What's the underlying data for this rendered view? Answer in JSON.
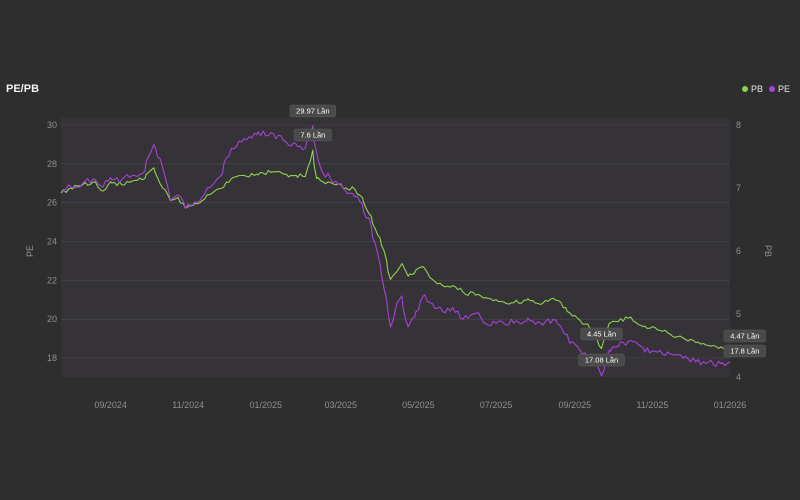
{
  "chart_data": {
    "type": "line",
    "title": "PE/PB",
    "ylabel_left": "PE",
    "ylabel_right": "PB",
    "x_ticks": [
      "09/2024",
      "11/2024",
      "01/2025",
      "03/2025",
      "05/2025",
      "07/2025",
      "09/2025",
      "11/2025",
      "01/2026"
    ],
    "x_range": [
      "2024-07-24",
      "2026-01-01"
    ],
    "y_left_ticks": [
      18,
      20,
      22,
      24,
      26,
      28,
      30
    ],
    "y_left_range": [
      17,
      30
    ],
    "y_right_ticks": [
      4,
      5,
      6,
      7,
      8
    ],
    "y_right_range": [
      4,
      8
    ],
    "legend_position": "top-right",
    "grid": "horizontal",
    "series": [
      {
        "name": "PB",
        "axis": "right",
        "color": "#8fd14f",
        "points": [
          [
            "2024-07-24",
            6.92
          ],
          [
            "2024-08-01",
            7.0
          ],
          [
            "2024-08-10",
            7.05
          ],
          [
            "2024-08-20",
            7.1
          ],
          [
            "2024-08-26",
            6.95
          ],
          [
            "2024-09-01",
            7.1
          ],
          [
            "2024-09-10",
            7.05
          ],
          [
            "2024-09-20",
            7.12
          ],
          [
            "2024-09-28",
            7.15
          ],
          [
            "2024-10-01",
            7.25
          ],
          [
            "2024-10-05",
            7.32
          ],
          [
            "2024-10-12",
            7.0
          ],
          [
            "2024-10-18",
            6.8
          ],
          [
            "2024-10-24",
            6.85
          ],
          [
            "2024-10-30",
            6.68
          ],
          [
            "2024-11-05",
            6.72
          ],
          [
            "2024-11-12",
            6.8
          ],
          [
            "2024-11-20",
            6.92
          ],
          [
            "2024-11-28",
            7.0
          ],
          [
            "2024-12-05",
            7.15
          ],
          [
            "2024-12-15",
            7.2
          ],
          [
            "2024-12-25",
            7.22
          ],
          [
            "2025-01-05",
            7.25
          ],
          [
            "2025-01-15",
            7.22
          ],
          [
            "2025-01-25",
            7.2
          ],
          [
            "2025-02-01",
            7.18
          ],
          [
            "2025-02-07",
            7.6
          ],
          [
            "2025-02-10",
            7.15
          ],
          [
            "2025-02-15",
            7.1
          ],
          [
            "2025-02-25",
            7.05
          ],
          [
            "2025-03-05",
            7.0
          ],
          [
            "2025-03-12",
            6.98
          ],
          [
            "2025-03-18",
            6.85
          ],
          [
            "2025-03-25",
            6.55
          ],
          [
            "2025-04-01",
            6.2
          ],
          [
            "2025-04-06",
            5.85
          ],
          [
            "2025-04-09",
            5.55
          ],
          [
            "2025-04-13",
            5.65
          ],
          [
            "2025-04-18",
            5.8
          ],
          [
            "2025-04-23",
            5.6
          ],
          [
            "2025-04-28",
            5.65
          ],
          [
            "2025-05-05",
            5.75
          ],
          [
            "2025-05-12",
            5.55
          ],
          [
            "2025-05-20",
            5.45
          ],
          [
            "2025-05-28",
            5.45
          ],
          [
            "2025-06-05",
            5.35
          ],
          [
            "2025-06-15",
            5.3
          ],
          [
            "2025-06-25",
            5.25
          ],
          [
            "2025-07-05",
            5.2
          ],
          [
            "2025-07-15",
            5.18
          ],
          [
            "2025-07-25",
            5.22
          ],
          [
            "2025-08-05",
            5.15
          ],
          [
            "2025-08-15",
            5.25
          ],
          [
            "2025-08-25",
            5.1
          ],
          [
            "2025-09-05",
            4.9
          ],
          [
            "2025-09-15",
            4.75
          ],
          [
            "2025-09-22",
            4.45
          ],
          [
            "2025-09-28",
            4.85
          ],
          [
            "2025-10-05",
            4.88
          ],
          [
            "2025-10-15",
            4.95
          ],
          [
            "2025-10-25",
            4.8
          ],
          [
            "2025-11-05",
            4.75
          ],
          [
            "2025-11-15",
            4.68
          ],
          [
            "2025-11-25",
            4.62
          ],
          [
            "2025-12-05",
            4.55
          ],
          [
            "2025-12-15",
            4.5
          ],
          [
            "2025-12-25",
            4.48
          ],
          [
            "2026-01-01",
            4.47
          ]
        ]
      },
      {
        "name": "PE",
        "axis": "left",
        "color": "#a741d8",
        "points": [
          [
            "2024-07-24",
            26.6
          ],
          [
            "2024-08-01",
            26.8
          ],
          [
            "2024-08-10",
            27.0
          ],
          [
            "2024-08-20",
            27.2
          ],
          [
            "2024-08-26",
            26.8
          ],
          [
            "2024-09-01",
            27.3
          ],
          [
            "2024-09-10",
            27.2
          ],
          [
            "2024-09-20",
            27.4
          ],
          [
            "2024-09-28",
            27.6
          ],
          [
            "2024-10-01",
            28.4
          ],
          [
            "2024-10-05",
            29.0
          ],
          [
            "2024-10-12",
            27.8
          ],
          [
            "2024-10-18",
            26.1
          ],
          [
            "2024-10-24",
            26.4
          ],
          [
            "2024-10-30",
            25.7
          ],
          [
            "2024-11-05",
            25.9
          ],
          [
            "2024-11-12",
            26.3
          ],
          [
            "2024-11-20",
            26.9
          ],
          [
            "2024-11-28",
            27.5
          ],
          [
            "2024-12-05",
            28.8
          ],
          [
            "2024-12-15",
            29.3
          ],
          [
            "2024-12-25",
            29.5
          ],
          [
            "2025-01-05",
            29.6
          ],
          [
            "2025-01-15",
            29.2
          ],
          [
            "2025-01-25",
            29.0
          ],
          [
            "2025-02-01",
            28.8
          ],
          [
            "2025-02-07",
            29.97
          ],
          [
            "2025-02-10",
            28.6
          ],
          [
            "2025-02-15",
            27.5
          ],
          [
            "2025-02-25",
            27.1
          ],
          [
            "2025-03-05",
            26.6
          ],
          [
            "2025-03-12",
            26.3
          ],
          [
            "2025-03-18",
            25.9
          ],
          [
            "2025-03-25",
            24.8
          ],
          [
            "2025-04-01",
            22.8
          ],
          [
            "2025-04-06",
            21.0
          ],
          [
            "2025-04-09",
            19.6
          ],
          [
            "2025-04-13",
            20.5
          ],
          [
            "2025-04-18",
            21.2
          ],
          [
            "2025-04-23",
            19.6
          ],
          [
            "2025-04-28",
            20.1
          ],
          [
            "2025-05-05",
            21.2
          ],
          [
            "2025-05-12",
            20.8
          ],
          [
            "2025-05-20",
            20.4
          ],
          [
            "2025-05-28",
            20.6
          ],
          [
            "2025-06-05",
            20.0
          ],
          [
            "2025-06-15",
            20.3
          ],
          [
            "2025-06-25",
            19.7
          ],
          [
            "2025-07-05",
            19.9
          ],
          [
            "2025-07-15",
            19.8
          ],
          [
            "2025-07-25",
            19.9
          ],
          [
            "2025-08-05",
            19.8
          ],
          [
            "2025-08-15",
            20.0
          ],
          [
            "2025-08-25",
            19.2
          ],
          [
            "2025-09-05",
            18.4
          ],
          [
            "2025-09-15",
            18.0
          ],
          [
            "2025-09-22",
            17.08
          ],
          [
            "2025-09-28",
            18.4
          ],
          [
            "2025-10-05",
            18.6
          ],
          [
            "2025-10-15",
            18.9
          ],
          [
            "2025-10-25",
            18.5
          ],
          [
            "2025-11-05",
            18.3
          ],
          [
            "2025-11-15",
            18.2
          ],
          [
            "2025-11-25",
            18.0
          ],
          [
            "2025-12-05",
            17.8
          ],
          [
            "2025-12-15",
            17.8
          ],
          [
            "2025-12-25",
            17.7
          ],
          [
            "2026-01-01",
            17.8
          ]
        ]
      }
    ],
    "annotations": [
      {
        "text": "29.97 Lần",
        "series": "PE",
        "x": "2025-02-07",
        "y": 29.97,
        "placement": "above"
      },
      {
        "text": "7.6 Lần",
        "series": "PB",
        "x": "2025-02-07",
        "y": 7.6,
        "placement": "below"
      },
      {
        "text": "4.45 Lần",
        "series": "PB",
        "x": "2025-09-22",
        "y": 4.45,
        "placement": "above"
      },
      {
        "text": "17.08 Lần",
        "series": "PE",
        "x": "2025-09-22",
        "y": 17.08,
        "placement": "below"
      },
      {
        "text": "4.47 Lần",
        "series": "PB",
        "x": "2026-01-01",
        "y": 4.47,
        "placement": "left"
      },
      {
        "text": "17.8 Lần",
        "series": "PE",
        "x": "2026-01-01",
        "y": 17.8,
        "placement": "left"
      }
    ],
    "colors": {
      "background": "#2e2e2e",
      "plot_fill": "#353337",
      "grid": "#4a4a4a",
      "callout_bg": "#4a4a4a"
    }
  }
}
